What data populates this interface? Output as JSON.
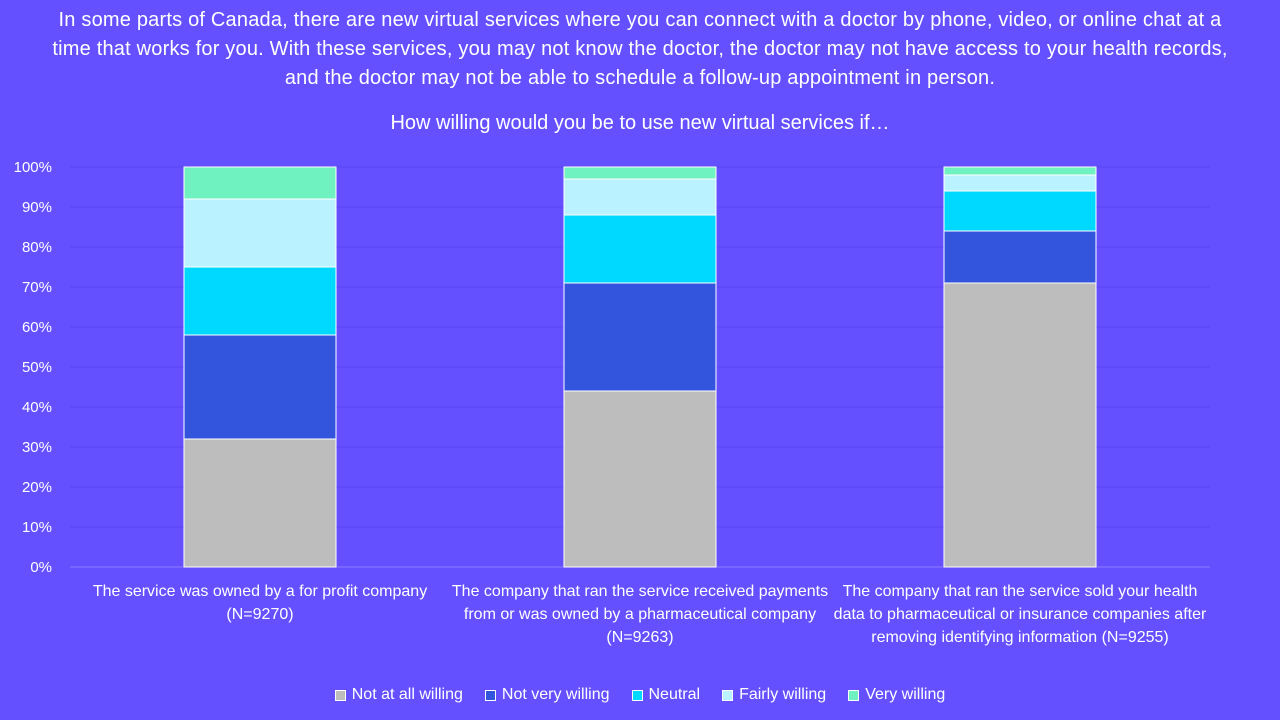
{
  "chart_data": {
    "type": "bar",
    "stacked": true,
    "title": "How willing would you be to use new virtual services if…",
    "intro": "In some parts of Canada, there are new virtual services where you can connect with a doctor by phone, video, or online chat at a time that works for you. With these services, you may not know the doctor, the doctor may not have access to your health records, and the doctor may not be able to schedule a follow-up appointment in person.",
    "categories": [
      "The service was owned by a for profit company (N=9270)",
      "The company that ran the service received payments from or was owned by a pharmaceutical company (N=9263)",
      "The company that ran the service sold your health data to pharmaceutical or insurance companies after removing identifying information (N=9255)"
    ],
    "series": [
      {
        "name": "Not at all willing",
        "color": "#BDBDBD",
        "values": [
          32,
          44,
          71
        ]
      },
      {
        "name": "Not very willing",
        "color": "#3355DD",
        "values": [
          26,
          27,
          13
        ]
      },
      {
        "name": "Neutral",
        "color": "#00D9FF",
        "values": [
          17,
          17,
          10
        ]
      },
      {
        "name": "Fairly willing",
        "color": "#BBF2FF",
        "values": [
          17,
          9,
          4
        ]
      },
      {
        "name": "Very willing",
        "color": "#6FF2C0",
        "values": [
          8,
          3,
          2
        ]
      }
    ],
    "yticks": [
      "0%",
      "10%",
      "20%",
      "30%",
      "40%",
      "50%",
      "60%",
      "70%",
      "80%",
      "90%",
      "100%"
    ],
    "ylim": [
      0,
      100
    ],
    "grid": true,
    "legend_position": "bottom"
  }
}
